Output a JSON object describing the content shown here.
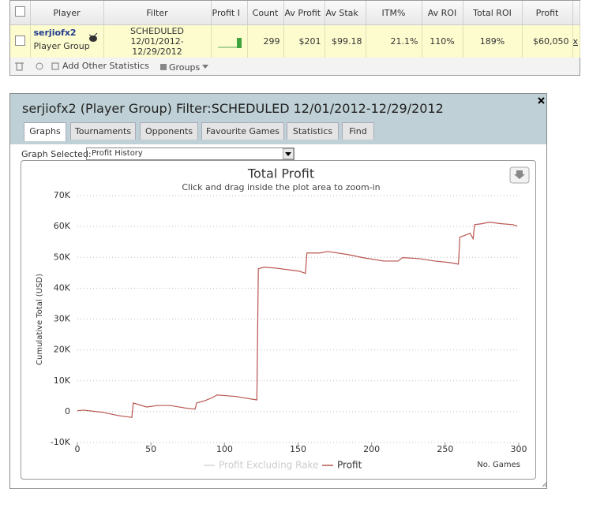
{
  "table": {
    "headers": [
      "Player",
      "Filter",
      "Profit I",
      "Count",
      "Av Profit",
      "Av Stak",
      "ITM%",
      "Av ROI",
      "Total ROI",
      "Profit"
    ],
    "rows": [
      {
        "player": "serjiofx2",
        "group": "Player Group",
        "filter": [
          "SCHEDULED",
          "12/01/2012-",
          "12/29/2012"
        ],
        "count": "299",
        "av_profit": "$201",
        "av_stake": "$99.18",
        "itm": "21.1%",
        "av_roi": "110%",
        "total_roi": "189%",
        "profit": "$60,050",
        "action": "x"
      }
    ]
  },
  "toolbar": {
    "add": "Add Other Statistics",
    "groups": "Groups"
  },
  "dialog": {
    "title": "serjiofx2 (Player Group) Filter:SCHEDULED 12/01/2012-12/29/2012",
    "tabs": [
      "Graphs",
      "Tournaments",
      "Opponents",
      "Favourite Games",
      "Statistics",
      "Find"
    ],
    "graph_selected_label": "Graph Selected:",
    "graph_selected": "Profit History"
  },
  "chart_data": {
    "type": "line",
    "title": "Total Profit",
    "subtitle": "Click and drag inside the plot area to zoom-in",
    "ylabel": "Cumulative Total (USD)",
    "xlabel": "No. Games",
    "xlim": [
      0,
      300
    ],
    "xticks": [
      0,
      50,
      100,
      150,
      200,
      250,
      300
    ],
    "ylim": [
      -10000,
      70000
    ],
    "yticks": [
      {
        "value": -10000,
        "label": "-10K"
      },
      0,
      {
        "value": 10000,
        "label": "10K"
      },
      {
        "value": 20000,
        "label": "20K"
      },
      {
        "value": 30000,
        "label": "30K"
      },
      {
        "value": 40000,
        "label": "40K"
      },
      {
        "value": 50000,
        "label": "50K"
      },
      {
        "value": 60000,
        "label": "60K"
      },
      {
        "value": 70000,
        "label": "70K"
      }
    ],
    "grid": true,
    "x": [
      0,
      4,
      17,
      28,
      36,
      37,
      38,
      47,
      55,
      63,
      73,
      80,
      81,
      87,
      92,
      95,
      103,
      108,
      114,
      122,
      123,
      127,
      135,
      143,
      151,
      155,
      156,
      165,
      170,
      184,
      194,
      208,
      218,
      221,
      232,
      243,
      253,
      259,
      260,
      267,
      269,
      270,
      275,
      280,
      288,
      296,
      299
    ],
    "series": [
      {
        "name": "Profit Excluding Rake",
        "color": "#d4d4d4",
        "values": [
          null,
          null,
          null,
          null,
          null,
          null,
          null,
          null,
          null,
          null,
          null,
          null,
          null,
          null,
          null,
          null,
          null,
          null,
          null,
          null,
          null,
          null,
          null,
          null,
          null,
          null,
          null,
          null,
          null,
          null,
          null,
          null,
          null,
          null,
          null,
          null,
          null,
          null,
          null,
          null,
          null,
          null,
          null,
          null,
          null,
          null,
          null
        ]
      },
      {
        "name": "Profit",
        "color": "#b8554f",
        "values": [
          300,
          500,
          -200,
          -1300,
          -1800,
          -1900,
          2800,
          1500,
          2000,
          2000,
          1200,
          800,
          2800,
          3600,
          4600,
          5400,
          5100,
          4900,
          4400,
          3800,
          46300,
          46800,
          46500,
          46000,
          45500,
          44800,
          51400,
          51400,
          51900,
          50900,
          49900,
          48800,
          48800,
          49900,
          49600,
          48800,
          48300,
          47800,
          56500,
          57800,
          56000,
          60600,
          60900,
          61400,
          60900,
          60600,
          60100
        ]
      }
    ]
  }
}
